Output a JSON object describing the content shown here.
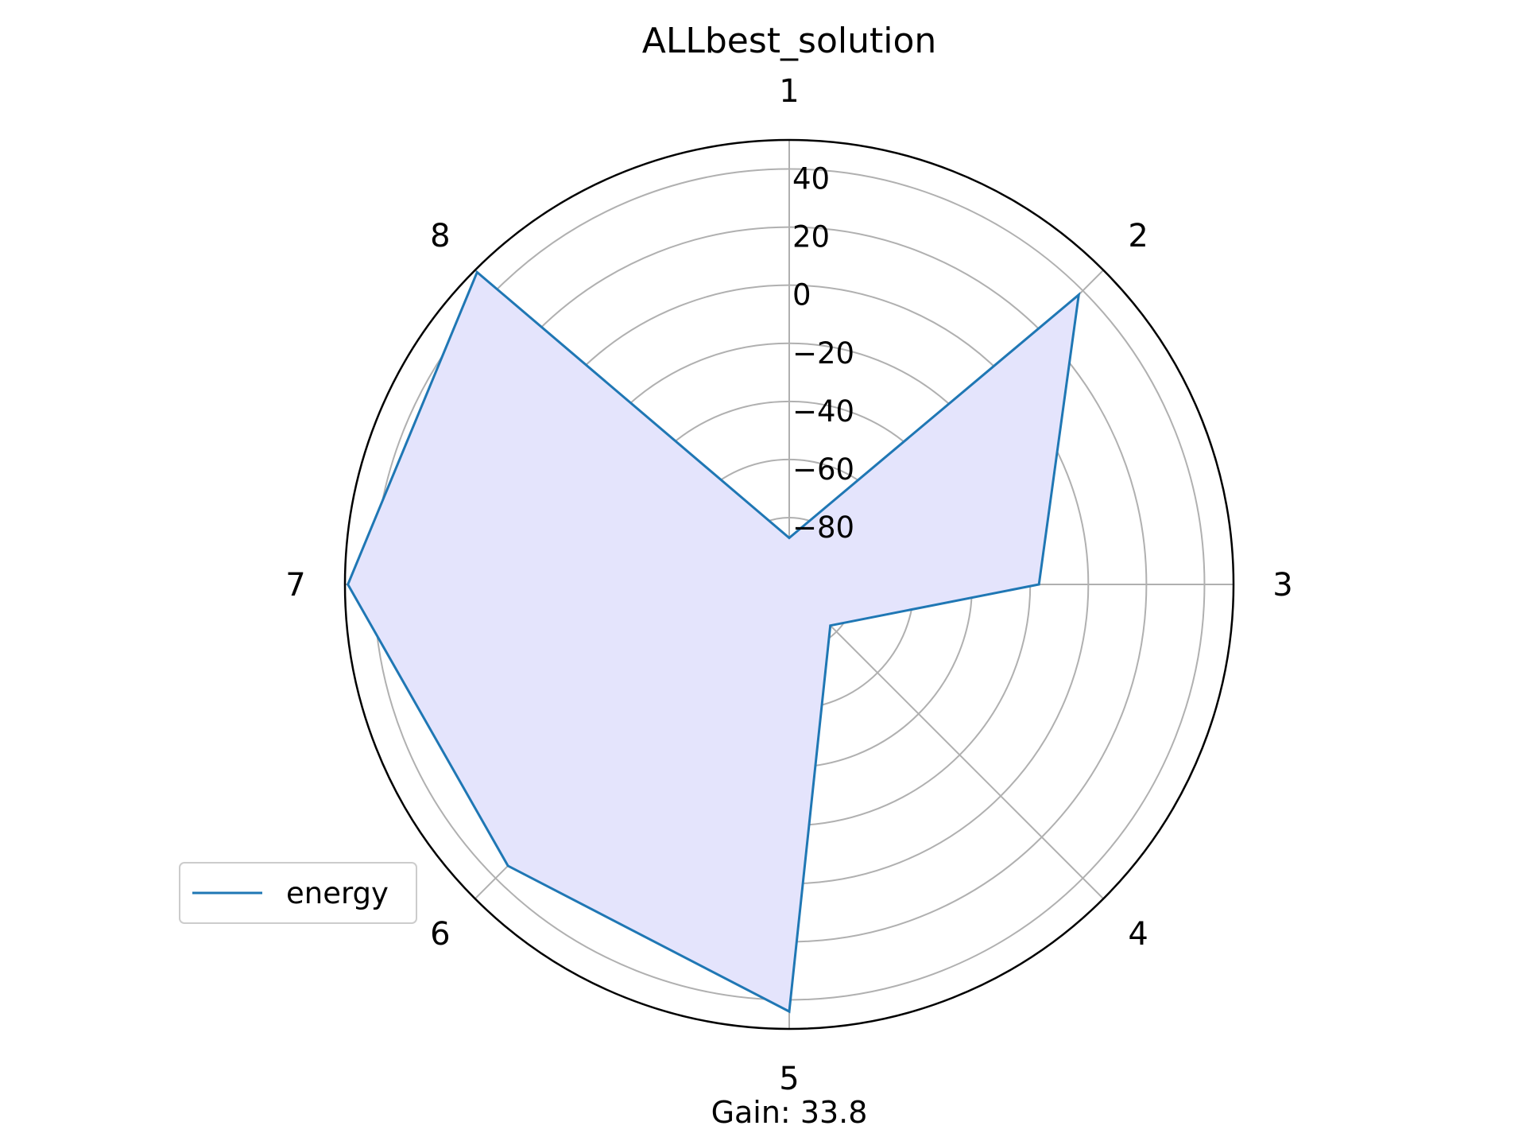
{
  "chart_data": {
    "type": "radar",
    "title": "ALLbest_solution",
    "categories": [
      "1",
      "2",
      "3",
      "4",
      "5",
      "6",
      "7",
      "8"
    ],
    "series": [
      {
        "name": "energy",
        "values": [
          -87,
          38,
          -17,
          -83,
          44,
          34,
          49,
          49
        ]
      }
    ],
    "radial_ticks": [
      40,
      20,
      0,
      -20,
      -40,
      -60,
      -80
    ],
    "radial_range": [
      -103,
      50
    ],
    "grid": true,
    "legend_position": "lower-left",
    "footer": "Gain: 33.8",
    "colors": {
      "line": "#1f77b4",
      "fill": "#e4e4fc",
      "grid": "#b0b0b0",
      "frame": "#000000"
    }
  }
}
